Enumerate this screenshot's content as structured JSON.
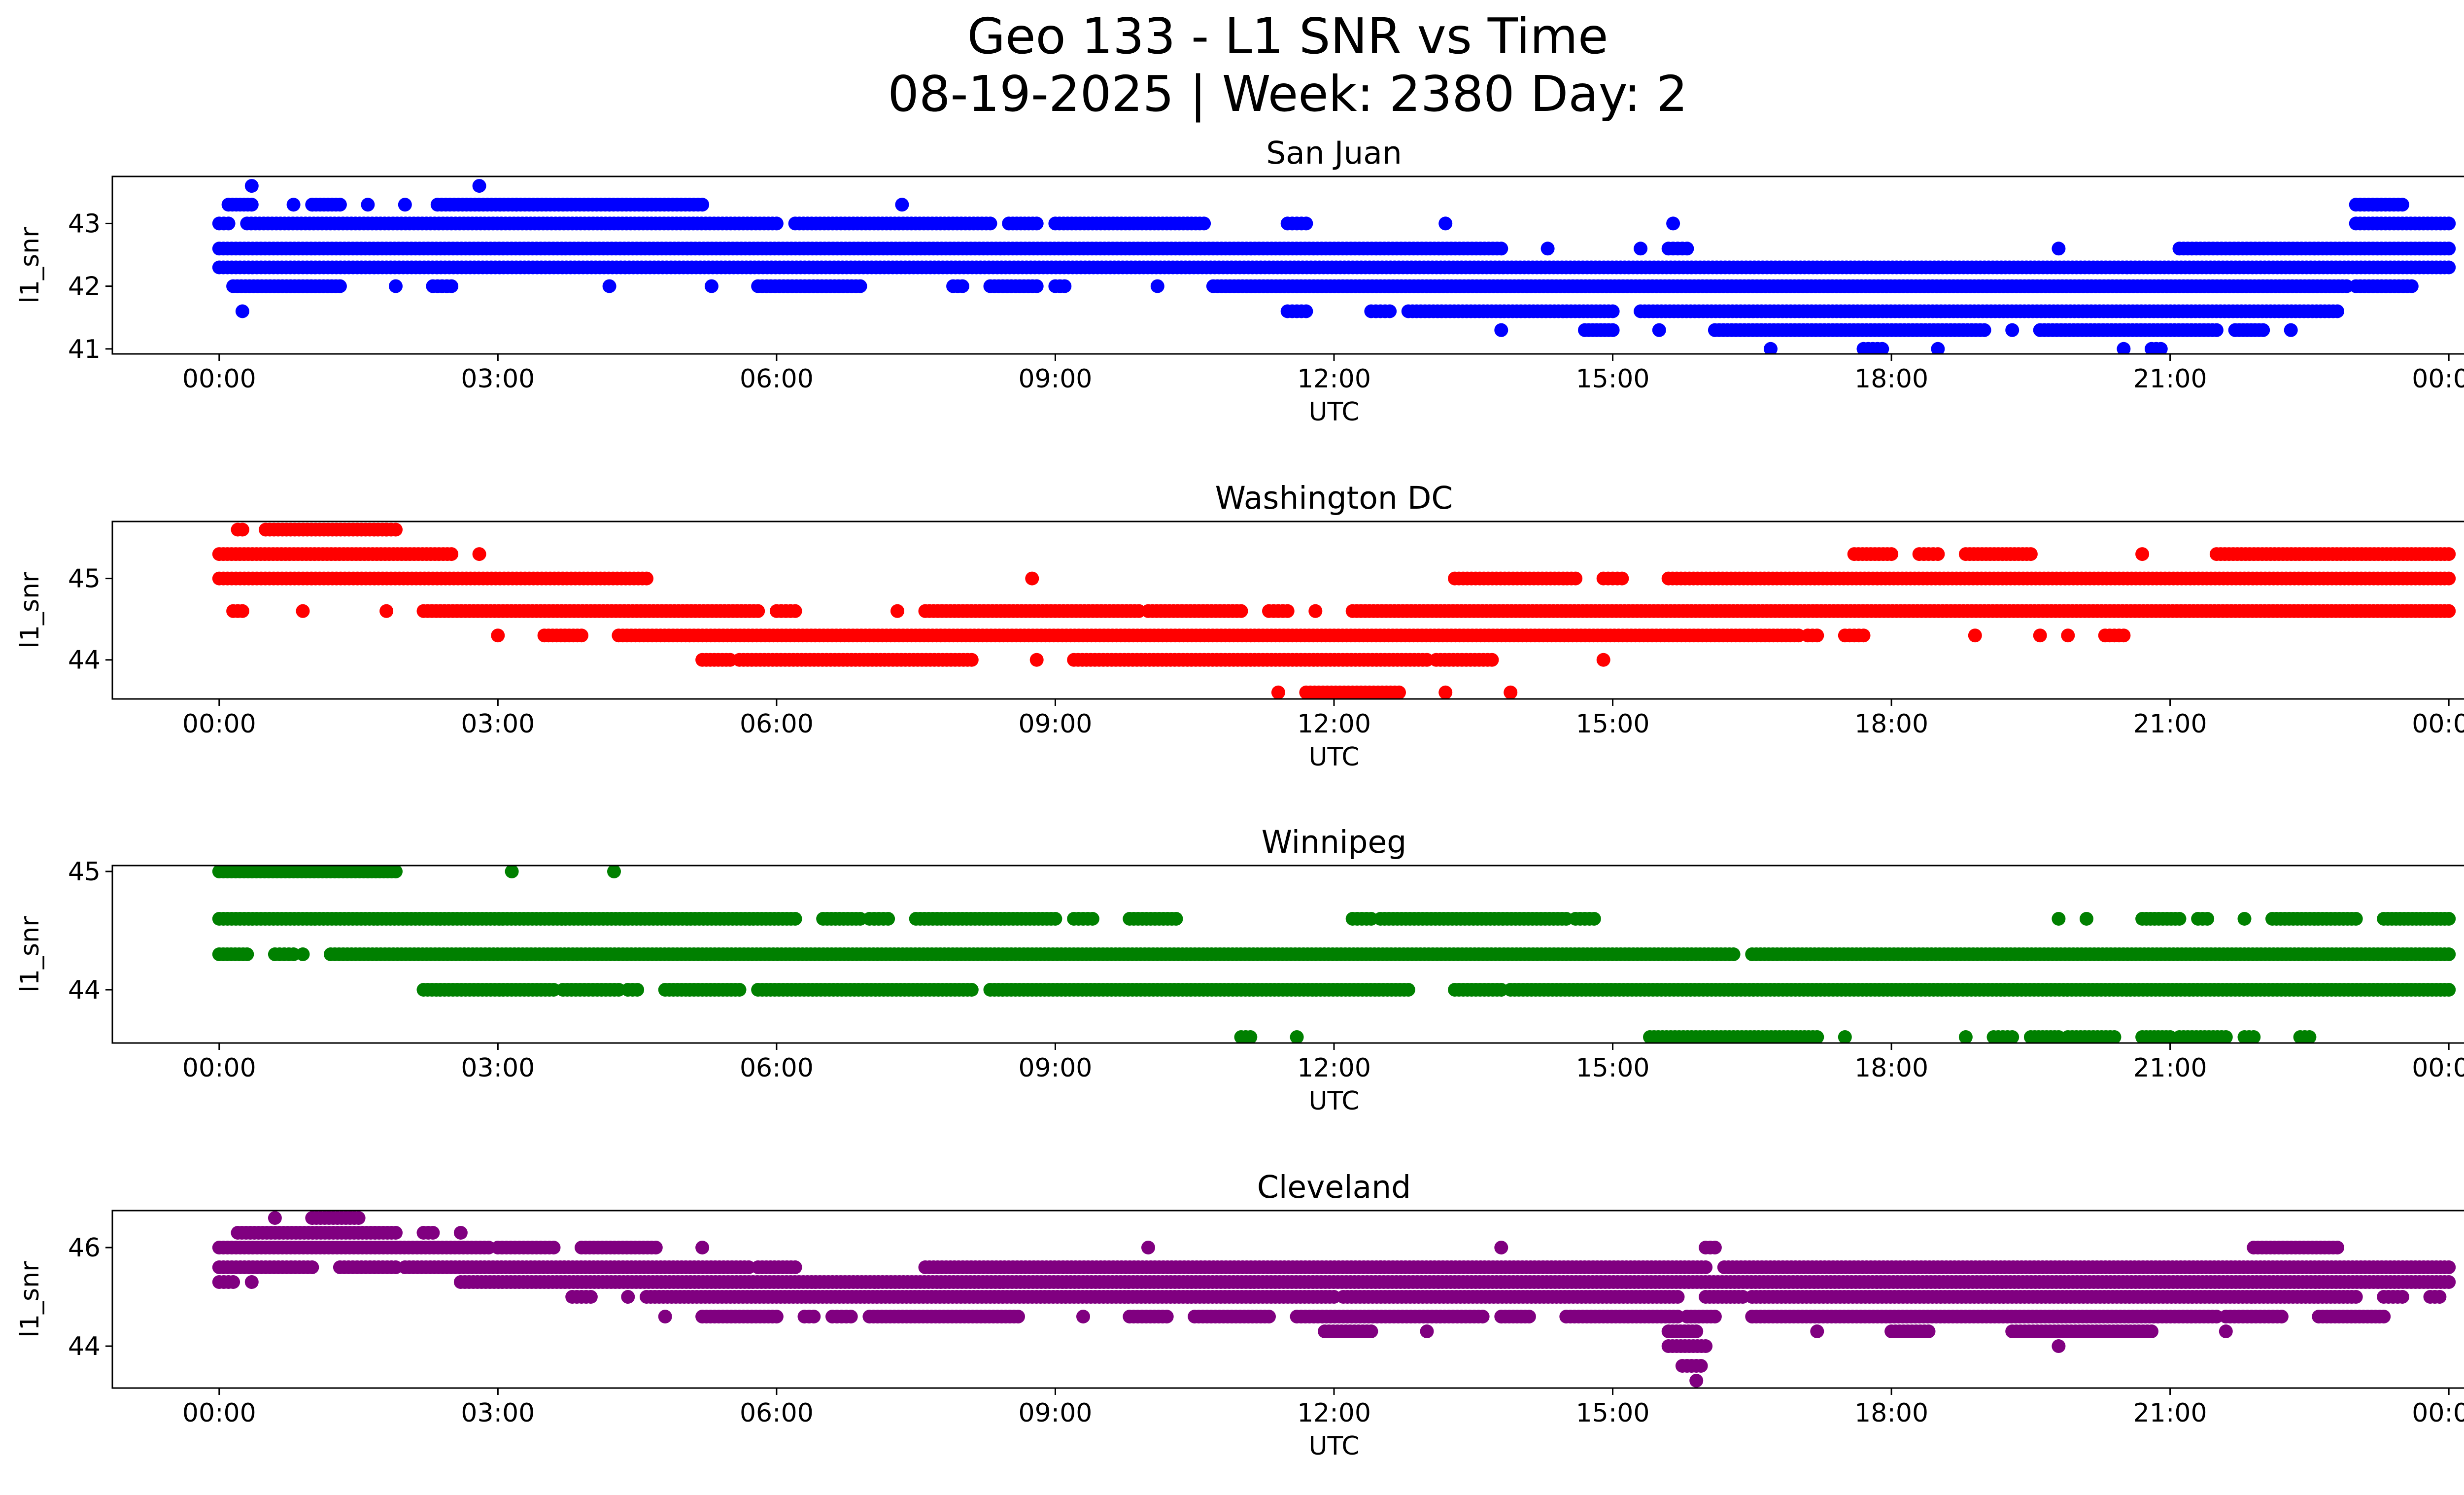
{
  "chart_data": {
    "type": "scatter",
    "title_line1": "Geo 133 - L1 SNR vs Time",
    "title_line2": "08-19-2025 | Week: 2380 Day: 2",
    "x_ticks": [
      "00:00",
      "03:00",
      "06:00",
      "09:00",
      "12:00",
      "15:00",
      "18:00",
      "21:00",
      "00:00"
    ],
    "x_tick_hours": [
      0,
      3,
      6,
      9,
      12,
      15,
      18,
      21,
      24
    ],
    "xlim_hours": [
      -1.15,
      25.15
    ],
    "panels": [
      {
        "title": "San Juan",
        "xlabel": "UTC",
        "ylabel": "l1_snr",
        "color": "#0000ff",
        "ylim": [
          40.92,
          43.75
        ],
        "yticks": [
          41,
          42,
          43
        ],
        "levels": [
          {
            "value": 43.6,
            "segments": [
              [
                0.35,
                0.35
              ],
              [
                2.8,
                2.8
              ]
            ]
          },
          {
            "value": 43.3,
            "segments": [
              [
                0.1,
                0.35
              ],
              [
                0.8,
                0.8
              ],
              [
                1.0,
                1.3
              ],
              [
                1.6,
                1.6
              ],
              [
                2.0,
                2.0
              ],
              [
                2.35,
                3.2
              ],
              [
                3.2,
                4.2
              ],
              [
                4.2,
                5.2
              ],
              [
                7.35,
                7.35
              ],
              [
                23.0,
                23.5
              ]
            ]
          },
          {
            "value": 43.0,
            "segments": [
              [
                0.0,
                0.1
              ],
              [
                0.3,
                6.0
              ],
              [
                6.2,
                8.3
              ],
              [
                8.5,
                8.8
              ],
              [
                9.0,
                10.6
              ],
              [
                11.5,
                11.7
              ],
              [
                13.2,
                13.2
              ],
              [
                15.65,
                15.65
              ],
              [
                23.0,
                24.0
              ]
            ]
          },
          {
            "value": 42.6,
            "segments": [
              [
                0.0,
                13.8
              ],
              [
                14.3,
                14.3
              ],
              [
                15.3,
                15.3
              ],
              [
                15.6,
                15.8
              ],
              [
                19.8,
                19.8
              ],
              [
                21.1,
                24.0
              ]
            ]
          },
          {
            "value": 42.3,
            "segments": [
              [
                0.0,
                24.0
              ]
            ]
          },
          {
            "value": 42.0,
            "segments": [
              [
                0.15,
                1.3
              ],
              [
                1.9,
                1.9
              ],
              [
                2.3,
                2.5
              ],
              [
                4.2,
                4.2
              ],
              [
                5.3,
                5.3
              ],
              [
                5.8,
                6.9
              ],
              [
                7.9,
                8.0
              ],
              [
                8.3,
                8.8
              ],
              [
                9.0,
                9.1
              ],
              [
                10.1,
                10.1
              ],
              [
                10.7,
                22.9
              ],
              [
                23.0,
                23.6
              ]
            ]
          },
          {
            "value": 41.6,
            "segments": [
              [
                0.25,
                0.25
              ],
              [
                11.5,
                11.7
              ],
              [
                12.4,
                12.6
              ],
              [
                12.8,
                15.0
              ],
              [
                15.3,
                22.8
              ]
            ]
          },
          {
            "value": 41.3,
            "segments": [
              [
                13.8,
                13.8
              ],
              [
                14.7,
                15.0
              ],
              [
                15.5,
                15.5
              ],
              [
                16.1,
                19.0
              ],
              [
                19.3,
                19.3
              ],
              [
                19.6,
                21.5
              ],
              [
                21.7,
                22.0
              ],
              [
                22.3,
                22.3
              ]
            ]
          },
          {
            "value": 41.0,
            "segments": [
              [
                16.7,
                16.7
              ],
              [
                17.7,
                17.9
              ],
              [
                18.5,
                18.5
              ],
              [
                20.5,
                20.5
              ],
              [
                20.8,
                20.9
              ]
            ]
          }
        ]
      },
      {
        "title": "Washington DC",
        "xlabel": "UTC",
        "ylabel": "l1_snr",
        "color": "#ff0000",
        "ylim": [
          43.52,
          45.7
        ],
        "yticks": [
          44,
          45
        ],
        "levels": [
          {
            "value": 45.6,
            "segments": [
              [
                0.2,
                0.25
              ],
              [
                0.5,
                1.8
              ],
              [
                1.8,
                1.9
              ]
            ]
          },
          {
            "value": 45.3,
            "segments": [
              [
                0.0,
                2.5
              ],
              [
                2.8,
                2.8
              ],
              [
                17.6,
                18.0
              ],
              [
                18.3,
                18.5
              ],
              [
                18.8,
                19.5
              ],
              [
                20.7,
                20.7
              ],
              [
                21.5,
                24.0
              ]
            ]
          },
          {
            "value": 45.0,
            "segments": [
              [
                0.0,
                4.6
              ],
              [
                8.75,
                8.75
              ],
              [
                13.3,
                14.6
              ],
              [
                14.9,
                15.1
              ],
              [
                15.6,
                24.0
              ]
            ]
          },
          {
            "value": 44.6,
            "segments": [
              [
                0.15,
                0.25
              ],
              [
                0.9,
                0.9
              ],
              [
                1.8,
                1.8
              ],
              [
                2.2,
                5.8
              ],
              [
                6.0,
                6.2
              ],
              [
                7.3,
                7.3
              ],
              [
                7.6,
                9.9
              ],
              [
                10.0,
                11.0
              ],
              [
                11.3,
                11.5
              ],
              [
                11.8,
                11.8
              ],
              [
                12.2,
                24.0
              ]
            ]
          },
          {
            "value": 44.3,
            "segments": [
              [
                3.0,
                3.0
              ],
              [
                3.5,
                3.9
              ],
              [
                4.3,
                17.0
              ],
              [
                17.1,
                17.2
              ],
              [
                17.5,
                17.7
              ],
              [
                18.9,
                18.9
              ],
              [
                19.6,
                19.6
              ],
              [
                19.9,
                19.9
              ],
              [
                20.3,
                20.5
              ]
            ]
          },
          {
            "value": 44.0,
            "segments": [
              [
                5.2,
                5.5
              ],
              [
                5.6,
                8.1
              ],
              [
                8.8,
                8.8
              ],
              [
                9.2,
                13.0
              ],
              [
                13.1,
                13.7
              ],
              [
                14.9,
                14.9
              ]
            ]
          },
          {
            "value": 43.6,
            "segments": [
              [
                11.4,
                11.4
              ],
              [
                11.7,
                12.7
              ],
              [
                13.2,
                13.2
              ],
              [
                13.9,
                13.9
              ]
            ]
          }
        ]
      },
      {
        "title": "Winnipeg",
        "xlabel": "UTC",
        "ylabel": "l1_snr",
        "color": "#008000",
        "ylim": [
          43.55,
          45.05
        ],
        "yticks": [
          44,
          45
        ],
        "levels": [
          {
            "value": 45.0,
            "segments": [
              [
                0.0,
                1.6
              ],
              [
                1.6,
                1.9
              ],
              [
                3.15,
                3.15
              ],
              [
                4.25,
                4.25
              ]
            ]
          },
          {
            "value": 44.6,
            "segments": [
              [
                0.0,
                6.2
              ],
              [
                6.5,
                6.9
              ],
              [
                7.0,
                7.2
              ],
              [
                7.5,
                9.0
              ],
              [
                9.2,
                9.4
              ],
              [
                9.8,
                10.3
              ],
              [
                12.2,
                12.4
              ],
              [
                12.5,
                14.5
              ],
              [
                14.6,
                14.8
              ],
              [
                19.8,
                19.8
              ],
              [
                20.1,
                20.1
              ],
              [
                20.7,
                21.1
              ],
              [
                21.3,
                21.4
              ],
              [
                21.8,
                21.8
              ],
              [
                22.1,
                23.0
              ],
              [
                23.3,
                24.0
              ]
            ]
          },
          {
            "value": 44.3,
            "segments": [
              [
                0.0,
                0.3
              ],
              [
                0.6,
                0.8
              ],
              [
                0.9,
                0.9
              ],
              [
                1.2,
                16.3
              ],
              [
                16.5,
                24.0
              ]
            ]
          },
          {
            "value": 44.0,
            "segments": [
              [
                2.2,
                3.6
              ],
              [
                3.7,
                4.3
              ],
              [
                4.4,
                4.5
              ],
              [
                4.8,
                5.6
              ],
              [
                5.8,
                8.1
              ],
              [
                8.3,
                12.8
              ],
              [
                13.3,
                13.8
              ],
              [
                13.9,
                24.0
              ]
            ]
          },
          {
            "value": 43.6,
            "segments": [
              [
                11.0,
                11.1
              ],
              [
                11.6,
                11.6
              ],
              [
                15.4,
                17.2
              ],
              [
                17.5,
                17.5
              ],
              [
                18.8,
                18.8
              ],
              [
                19.1,
                19.3
              ],
              [
                19.5,
                19.8
              ],
              [
                19.9,
                20.4
              ],
              [
                20.7,
                21.0
              ],
              [
                21.1,
                21.6
              ],
              [
                21.8,
                21.9
              ],
              [
                22.4,
                22.5
              ]
            ]
          }
        ]
      },
      {
        "title": "Cleveland",
        "xlabel": "UTC",
        "ylabel": "l1_snr",
        "color": "#800080",
        "ylim": [
          43.15,
          46.75
        ],
        "yticks": [
          44,
          46
        ],
        "levels": [
          {
            "value": 46.6,
            "segments": [
              [
                0.6,
                0.6
              ],
              [
                1.0,
                1.5
              ]
            ]
          },
          {
            "value": 46.3,
            "segments": [
              [
                0.2,
                1.9
              ],
              [
                2.2,
                2.3
              ],
              [
                2.6,
                2.6
              ]
            ]
          },
          {
            "value": 46.0,
            "segments": [
              [
                0.0,
                2.9
              ],
              [
                3.0,
                3.6
              ],
              [
                3.9,
                4.7
              ],
              [
                5.2,
                5.2
              ],
              [
                10.0,
                10.0
              ],
              [
                13.8,
                13.8
              ],
              [
                16.0,
                16.1
              ],
              [
                21.9,
                22.8
              ]
            ]
          },
          {
            "value": 45.6,
            "segments": [
              [
                0.0,
                1.0
              ],
              [
                1.3,
                1.9
              ],
              [
                2.0,
                5.7
              ],
              [
                5.8,
                6.2
              ],
              [
                7.6,
                12.5
              ],
              [
                12.5,
                16.0
              ],
              [
                16.2,
                24.0
              ]
            ]
          },
          {
            "value": 45.3,
            "segments": [
              [
                0.0,
                0.15
              ],
              [
                0.35,
                0.35
              ],
              [
                2.6,
                24.0
              ]
            ]
          },
          {
            "value": 45.0,
            "segments": [
              [
                3.8,
                4.0
              ],
              [
                4.4,
                4.4
              ],
              [
                4.6,
                12.0
              ],
              [
                12.1,
                15.7
              ],
              [
                16.0,
                16.4
              ],
              [
                16.5,
                23.0
              ],
              [
                23.3,
                23.5
              ],
              [
                23.8,
                23.9
              ]
            ]
          },
          {
            "value": 44.6,
            "segments": [
              [
                4.8,
                4.8
              ],
              [
                5.2,
                6.0
              ],
              [
                6.3,
                6.4
              ],
              [
                6.6,
                6.8
              ],
              [
                7.0,
                8.6
              ],
              [
                9.3,
                9.3
              ],
              [
                9.8,
                10.2
              ],
              [
                10.5,
                11.3
              ],
              [
                11.6,
                13.6
              ],
              [
                13.8,
                14.1
              ],
              [
                14.5,
                15.7
              ],
              [
                15.8,
                16.1
              ],
              [
                16.5,
                21.5
              ],
              [
                21.6,
                22.2
              ],
              [
                22.6,
                23.3
              ]
            ]
          },
          {
            "value": 44.3,
            "segments": [
              [
                11.9,
                12.4
              ],
              [
                13.0,
                13.0
              ],
              [
                15.6,
                15.9
              ],
              [
                17.2,
                17.2
              ],
              [
                18.0,
                18.4
              ],
              [
                19.3,
                20.8
              ],
              [
                21.6,
                21.6
              ]
            ]
          },
          {
            "value": 44.0,
            "segments": [
              [
                15.6,
                16.0
              ],
              [
                19.8,
                19.8
              ]
            ]
          },
          {
            "value": 43.6,
            "segments": [
              [
                15.75,
                15.95
              ]
            ]
          },
          {
            "value": 43.3,
            "segments": [
              [
                15.9,
                15.9
              ]
            ]
          }
        ]
      }
    ]
  }
}
